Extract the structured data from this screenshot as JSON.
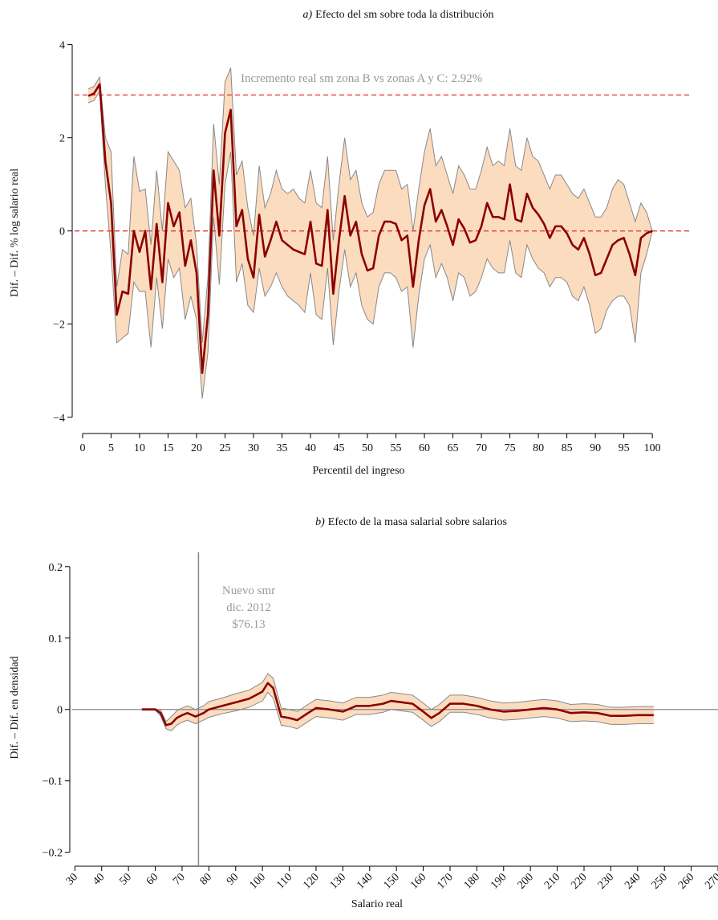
{
  "chart_data": [
    {
      "type": "line",
      "title_label": "a)",
      "title": "Efecto del sm sobre toda la distribución",
      "xlabel": "Percentil del ingreso",
      "ylabel": "Dif. – Dif. % log salario real",
      "annotation": [
        "Incremento real sm zona B vs zonas A y C: 2.92%"
      ],
      "color": "#8b0000",
      "band_color": "#fcdcbf",
      "band_edge_color": "#888888",
      "hlines": [
        {
          "value": 2.92,
          "color": "#e8382c",
          "style": "dashed"
        },
        {
          "value": 0,
          "color": "#e8382c",
          "style": "dashed"
        }
      ],
      "vlines": [],
      "xlim": [
        -1.4,
        106.6
      ],
      "ylim": [
        -4.28,
        4.2
      ],
      "xticks": [
        0,
        5,
        10,
        15,
        20,
        25,
        30,
        35,
        40,
        45,
        50,
        55,
        60,
        65,
        70,
        75,
        80,
        85,
        90,
        95,
        100
      ],
      "yticks": [
        {
          "value": -4,
          "label": "−4"
        },
        {
          "value": -2,
          "label": "−2"
        },
        0,
        2,
        4
      ],
      "rotate_xticks": false,
      "x": [
        1,
        2,
        3,
        4,
        5,
        6,
        7,
        8,
        9,
        10,
        11,
        12,
        13,
        14,
        15,
        16,
        17,
        18,
        19,
        20,
        21,
        22,
        23,
        24,
        25,
        26,
        27,
        28,
        29,
        30,
        31,
        32,
        33,
        34,
        35,
        36,
        37,
        38,
        39,
        40,
        41,
        42,
        43,
        44,
        45,
        46,
        47,
        48,
        49,
        50,
        51,
        52,
        53,
        54,
        55,
        56,
        57,
        58,
        59,
        60,
        61,
        62,
        63,
        64,
        65,
        66,
        67,
        68,
        69,
        70,
        71,
        72,
        73,
        74,
        75,
        76,
        77,
        78,
        79,
        80,
        81,
        82,
        83,
        84,
        85,
        86,
        87,
        88,
        89,
        90,
        91,
        92,
        93,
        94,
        95,
        96,
        97,
        98,
        99,
        100
      ],
      "values": [
        2.9,
        2.95,
        3.15,
        1.5,
        0.6,
        -1.8,
        -1.3,
        -1.35,
        0,
        -0.45,
        0,
        -1.25,
        0.15,
        -1.1,
        0.6,
        0.1,
        0.4,
        -0.75,
        -0.2,
        -0.9,
        -3.05,
        -1.8,
        1.3,
        -0.1,
        2.1,
        2.6,
        0.1,
        0.45,
        -0.6,
        -1.0,
        0.35,
        -0.55,
        -0.2,
        0.2,
        -0.2,
        -0.3,
        -0.4,
        -0.45,
        -0.5,
        0.2,
        -0.7,
        -0.75,
        0.45,
        -1.35,
        -0.2,
        0.75,
        -0.1,
        0.2,
        -0.5,
        -0.85,
        -0.8,
        -0.1,
        0.2,
        0.2,
        0.15,
        -0.2,
        -0.1,
        -1.2,
        -0.2,
        0.55,
        0.9,
        0.2,
        0.45,
        0.1,
        -0.3,
        0.25,
        0.05,
        -0.25,
        -0.2,
        0.1,
        0.6,
        0.3,
        0.3,
        0.25,
        1.0,
        0.25,
        0.2,
        0.8,
        0.5,
        0.35,
        0.15,
        -0.15,
        0.1,
        0.1,
        -0.05,
        -0.3,
        -0.4,
        -0.15,
        -0.5,
        -0.95,
        -0.9,
        -0.6,
        -0.3,
        -0.2,
        -0.15,
        -0.5,
        -0.95,
        -0.15,
        -0.05,
        0.0
      ],
      "lower": [
        2.75,
        2.8,
        3.0,
        1.0,
        -0.5,
        -2.4,
        -2.3,
        -2.2,
        -1.1,
        -1.3,
        -1.3,
        -2.5,
        -1.0,
        -2.1,
        -0.6,
        -1.0,
        -0.8,
        -1.9,
        -1.4,
        -1.9,
        -3.6,
        -2.6,
        0.3,
        -1.15,
        1.0,
        1.7,
        -1.1,
        -0.7,
        -1.6,
        -1.75,
        -0.8,
        -1.4,
        -1.2,
        -0.9,
        -1.2,
        -1.4,
        -1.5,
        -1.6,
        -1.75,
        -0.9,
        -1.8,
        -1.9,
        -0.8,
        -2.45,
        -1.3,
        -0.4,
        -1.2,
        -0.9,
        -1.6,
        -1.9,
        -2.0,
        -1.2,
        -0.9,
        -0.9,
        -1.0,
        -1.3,
        -1.2,
        -2.5,
        -1.4,
        -0.6,
        -0.3,
        -1.0,
        -0.7,
        -1.0,
        -1.5,
        -0.9,
        -1.0,
        -1.4,
        -1.3,
        -1.0,
        -0.6,
        -0.8,
        -0.9,
        -0.9,
        -0.2,
        -0.9,
        -1.0,
        -0.3,
        -0.6,
        -0.8,
        -0.9,
        -1.2,
        -1.0,
        -1.0,
        -1.1,
        -1.4,
        -1.5,
        -1.2,
        -1.6,
        -2.2,
        -2.1,
        -1.7,
        -1.5,
        -1.4,
        -1.4,
        -1.6,
        -2.4,
        -0.9,
        -0.5,
        0.0
      ],
      "upper": [
        3.05,
        3.1,
        3.3,
        2.0,
        1.7,
        -1.2,
        -0.4,
        -0.5,
        1.6,
        0.85,
        0.9,
        -0.3,
        1.3,
        0.0,
        1.7,
        1.5,
        1.3,
        0.5,
        0.7,
        -0.3,
        -2.4,
        -1.0,
        2.3,
        1.0,
        3.2,
        3.5,
        1.2,
        1.5,
        0.5,
        -0.1,
        1.4,
        0.5,
        0.8,
        1.3,
        0.9,
        0.8,
        0.9,
        0.7,
        0.6,
        1.3,
        0.6,
        0.5,
        1.6,
        -0.2,
        1.0,
        2.0,
        1.1,
        1.3,
        0.6,
        0.3,
        0.4,
        1.0,
        1.3,
        1.3,
        1.3,
        0.9,
        1.0,
        0.0,
        0.9,
        1.7,
        2.2,
        1.4,
        1.6,
        1.2,
        0.8,
        1.4,
        1.2,
        0.9,
        0.9,
        1.3,
        1.8,
        1.4,
        1.5,
        1.4,
        2.2,
        1.4,
        1.3,
        2.0,
        1.6,
        1.5,
        1.2,
        0.9,
        1.2,
        1.2,
        1.0,
        0.8,
        0.7,
        0.9,
        0.6,
        0.3,
        0.3,
        0.5,
        0.9,
        1.1,
        1.0,
        0.6,
        0.2,
        0.6,
        0.4,
        0.0
      ]
    },
    {
      "type": "line",
      "title_label": "b)",
      "title": "Efecto de la masa salarial sobre salarios",
      "xlabel": "Salario real",
      "ylabel": "Dif. – Dif. en densidad",
      "annotation": [
        "Nuevo smr",
        "dic. 2012",
        "$76.13"
      ],
      "color": "#8b0000",
      "band_color": "#fcdcbf",
      "band_edge_color": "#888888",
      "hlines": [
        {
          "value": 0,
          "color": "#888888",
          "style": "solid"
        }
      ],
      "vlines": [
        {
          "value": 76.13,
          "color": "#888888",
          "style": "solid"
        }
      ],
      "xlim": [
        29,
        270
      ],
      "ylim": [
        -0.215,
        0.22
      ],
      "xticks": [
        30,
        40,
        50,
        60,
        70,
        80,
        90,
        100,
        110,
        120,
        130,
        140,
        150,
        160,
        170,
        180,
        190,
        200,
        210,
        220,
        230,
        240,
        250,
        260,
        270
      ],
      "yticks": [
        {
          "value": -0.2,
          "label": "−0.2"
        },
        {
          "value": -0.1,
          "label": "−0.1"
        },
        0,
        0.1,
        0.2
      ],
      "rotate_xticks": true,
      "x": [
        55,
        60,
        62,
        64,
        66,
        68,
        70,
        72,
        75,
        78,
        80,
        85,
        90,
        95,
        100,
        102,
        104,
        107,
        110,
        113,
        117,
        120,
        125,
        130,
        135,
        140,
        145,
        148,
        152,
        156,
        160,
        163,
        166,
        170,
        175,
        180,
        185,
        190,
        195,
        200,
        205,
        210,
        215,
        220,
        225,
        230,
        235,
        240,
        246
      ],
      "values": [
        0,
        0,
        -0.005,
        -0.022,
        -0.02,
        -0.012,
        -0.008,
        -0.005,
        -0.01,
        -0.005,
        0.0,
        0.005,
        0.01,
        0.015,
        0.025,
        0.037,
        0.03,
        -0.01,
        -0.012,
        -0.015,
        -0.005,
        0.002,
        0.0,
        -0.003,
        0.005,
        0.005,
        0.008,
        0.012,
        0.01,
        0.008,
        -0.003,
        -0.012,
        -0.005,
        0.008,
        0.008,
        0.005,
        0.0,
        -0.003,
        -0.002,
        0.0,
        0.002,
        0.0,
        -0.005,
        -0.004,
        -0.005,
        -0.009,
        -0.009,
        -0.008,
        -0.008
      ],
      "lower": [
        -0.001,
        -0.001,
        -0.009,
        -0.027,
        -0.03,
        -0.022,
        -0.018,
        -0.015,
        -0.02,
        -0.015,
        -0.011,
        -0.006,
        -0.002,
        0.003,
        0.012,
        0.024,
        0.016,
        -0.022,
        -0.024,
        -0.027,
        -0.017,
        -0.01,
        -0.012,
        -0.015,
        -0.007,
        -0.007,
        -0.004,
        0.0,
        -0.002,
        -0.004,
        -0.015,
        -0.024,
        -0.017,
        -0.004,
        -0.004,
        -0.007,
        -0.012,
        -0.015,
        -0.014,
        -0.012,
        -0.01,
        -0.012,
        -0.017,
        -0.016,
        -0.017,
        -0.021,
        -0.021,
        -0.02,
        -0.02
      ],
      "upper": [
        0.001,
        0.001,
        -0.001,
        -0.017,
        -0.01,
        -0.002,
        0.002,
        0.005,
        0.0,
        0.005,
        0.011,
        0.016,
        0.022,
        0.027,
        0.038,
        0.05,
        0.044,
        0.002,
        0.0,
        -0.003,
        0.007,
        0.014,
        0.012,
        0.009,
        0.017,
        0.017,
        0.02,
        0.024,
        0.022,
        0.02,
        0.009,
        0.0,
        0.007,
        0.02,
        0.02,
        0.017,
        0.012,
        0.009,
        0.01,
        0.012,
        0.014,
        0.012,
        0.007,
        0.008,
        0.007,
        0.003,
        0.003,
        0.004,
        0.004
      ]
    }
  ]
}
